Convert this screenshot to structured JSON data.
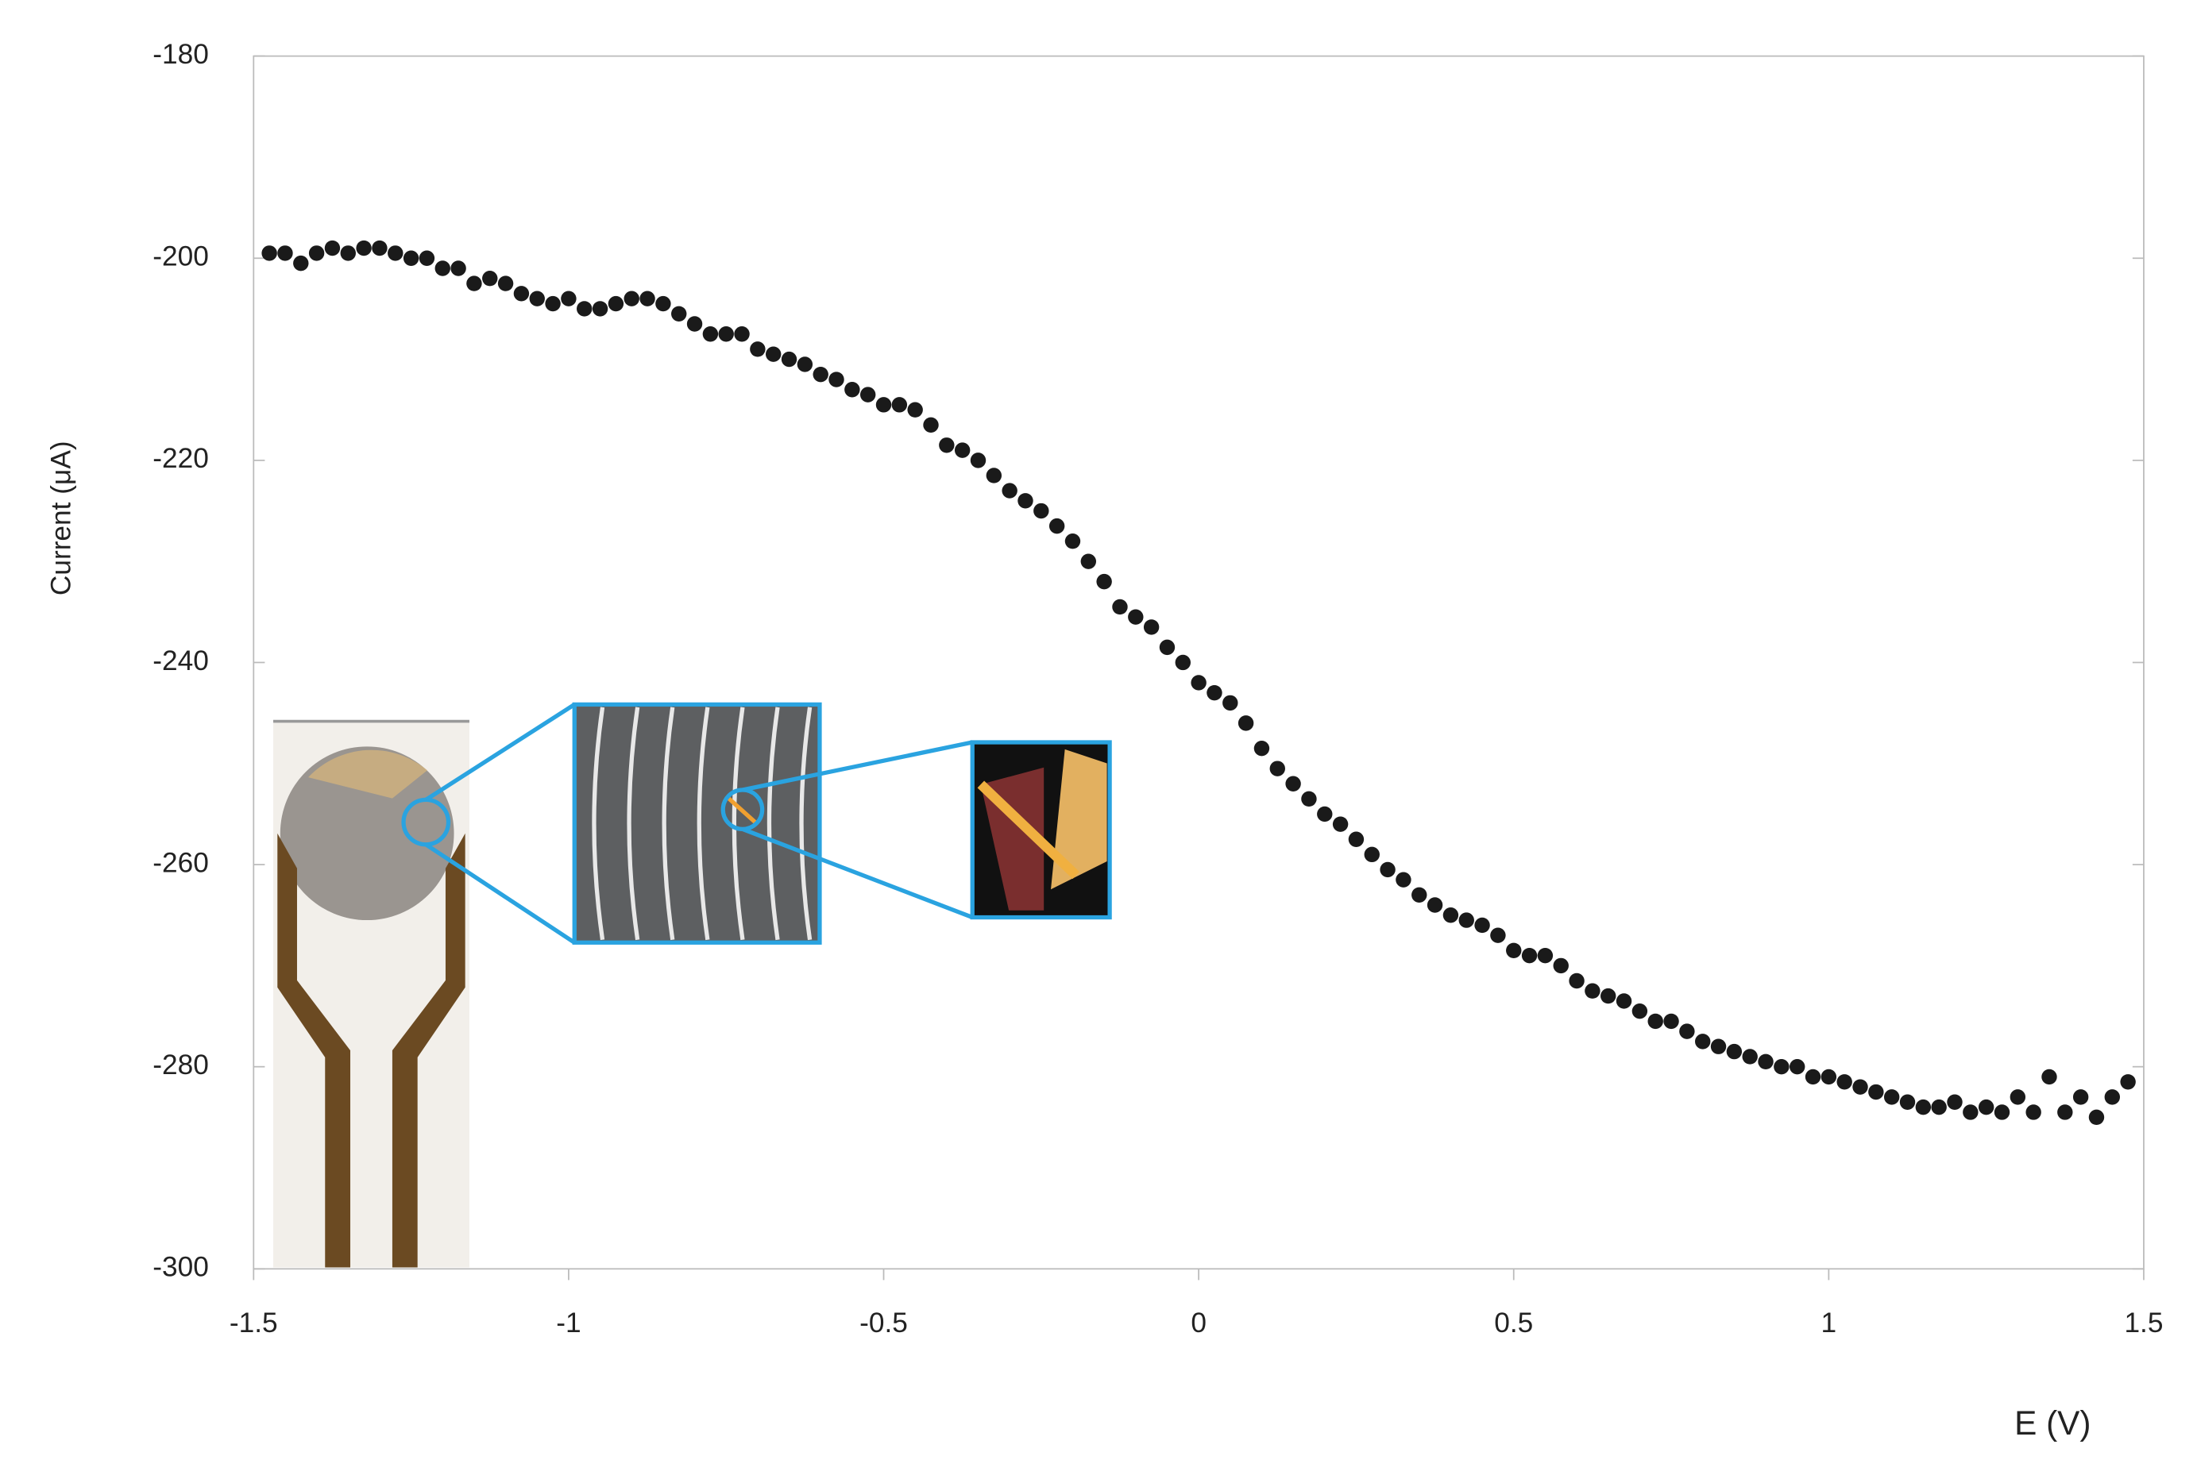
{
  "chart_data": {
    "type": "scatter",
    "y_label": "Current (μA)",
    "x_label": "E (V)",
    "xlim": [
      -1.5,
      1.5
    ],
    "xticks": [
      -1.5,
      -1,
      -0.5,
      0,
      0.5,
      1,
      1.5
    ],
    "ylim": [
      -300,
      -180
    ],
    "yticks": [
      -180,
      -200,
      -220,
      -240,
      -260,
      -280,
      -300
    ],
    "color": "#1a1a1a",
    "x": [
      -1.475,
      -1.45,
      -1.425,
      -1.4,
      -1.375,
      -1.35,
      -1.325,
      -1.3,
      -1.275,
      -1.25,
      -1.225,
      -1.2,
      -1.175,
      -1.15,
      -1.125,
      -1.1,
      -1.075,
      -1.05,
      -1.025,
      -1.0,
      -0.975,
      -0.95,
      -0.925,
      -0.9,
      -0.875,
      -0.85,
      -0.825,
      -0.8,
      -0.775,
      -0.75,
      -0.725,
      -0.7,
      -0.675,
      -0.65,
      -0.625,
      -0.6,
      -0.575,
      -0.55,
      -0.525,
      -0.5,
      -0.475,
      -0.45,
      -0.425,
      -0.4,
      -0.375,
      -0.35,
      -0.325,
      -0.3,
      -0.275,
      -0.25,
      -0.225,
      -0.2,
      -0.175,
      -0.15,
      -0.125,
      -0.1,
      -0.075,
      -0.05,
      -0.025,
      0,
      0.025,
      0.05,
      0.075,
      0.1,
      0.125,
      0.15,
      0.175,
      0.2,
      0.225,
      0.25,
      0.275,
      0.3,
      0.325,
      0.35,
      0.375,
      0.4,
      0.425,
      0.45,
      0.475,
      0.5,
      0.525,
      0.55,
      0.575,
      0.6,
      0.625,
      0.65,
      0.675,
      0.7,
      0.725,
      0.75,
      0.775,
      0.8,
      0.825,
      0.85,
      0.875,
      0.9,
      0.925,
      0.95,
      0.975,
      1.0,
      1.025,
      1.05,
      1.075,
      1.1,
      1.125,
      1.15,
      1.175,
      1.2,
      1.225,
      1.25,
      1.275,
      1.3,
      1.325,
      1.35,
      1.375,
      1.4,
      1.425,
      1.45,
      1.475
    ],
    "values": [
      -199.5,
      -199.5,
      -200.5,
      -199.5,
      -199,
      -199.5,
      -199,
      -199,
      -199.5,
      -200,
      -200,
      -201,
      -201,
      -202.5,
      -202,
      -202.5,
      -203.5,
      -204,
      -204.5,
      -204,
      -205,
      -205,
      -204.5,
      -204,
      -204,
      -204.5,
      -205.5,
      -206.5,
      -207.5,
      -207.5,
      -207.5,
      -209,
      -209.5,
      -210,
      -210.5,
      -211.5,
      -212,
      -213,
      -213.5,
      -214.5,
      -214.5,
      -215,
      -216.5,
      -218.5,
      -219,
      -220,
      -221.5,
      -223,
      -224,
      -225,
      -226.5,
      -228,
      -230,
      -232,
      -234.5,
      -235.5,
      -236.5,
      -238.5,
      -240,
      -242,
      -243,
      -244,
      -246,
      -248.5,
      -250.5,
      -252,
      -253.5,
      -255,
      -256,
      -257.5,
      -259,
      -260.5,
      -261.5,
      -263,
      -264,
      -265,
      -265.5,
      -266,
      -267,
      -268.5,
      -269,
      -269,
      -270,
      -271.5,
      -272.5,
      -273,
      -273.5,
      -274.5,
      -275.5,
      -275.5,
      -276.5,
      -277.5,
      -278,
      -278.5,
      -279,
      -279.5,
      -280,
      -280,
      -281,
      -281,
      -281.5,
      -282,
      -282.5,
      -283,
      -283.5,
      -284,
      -284,
      -283.5,
      -284.5,
      -284,
      -284.5,
      -283,
      -284.5,
      -281,
      -284.5,
      -283,
      -285,
      -283,
      -281.5
    ]
  }
}
